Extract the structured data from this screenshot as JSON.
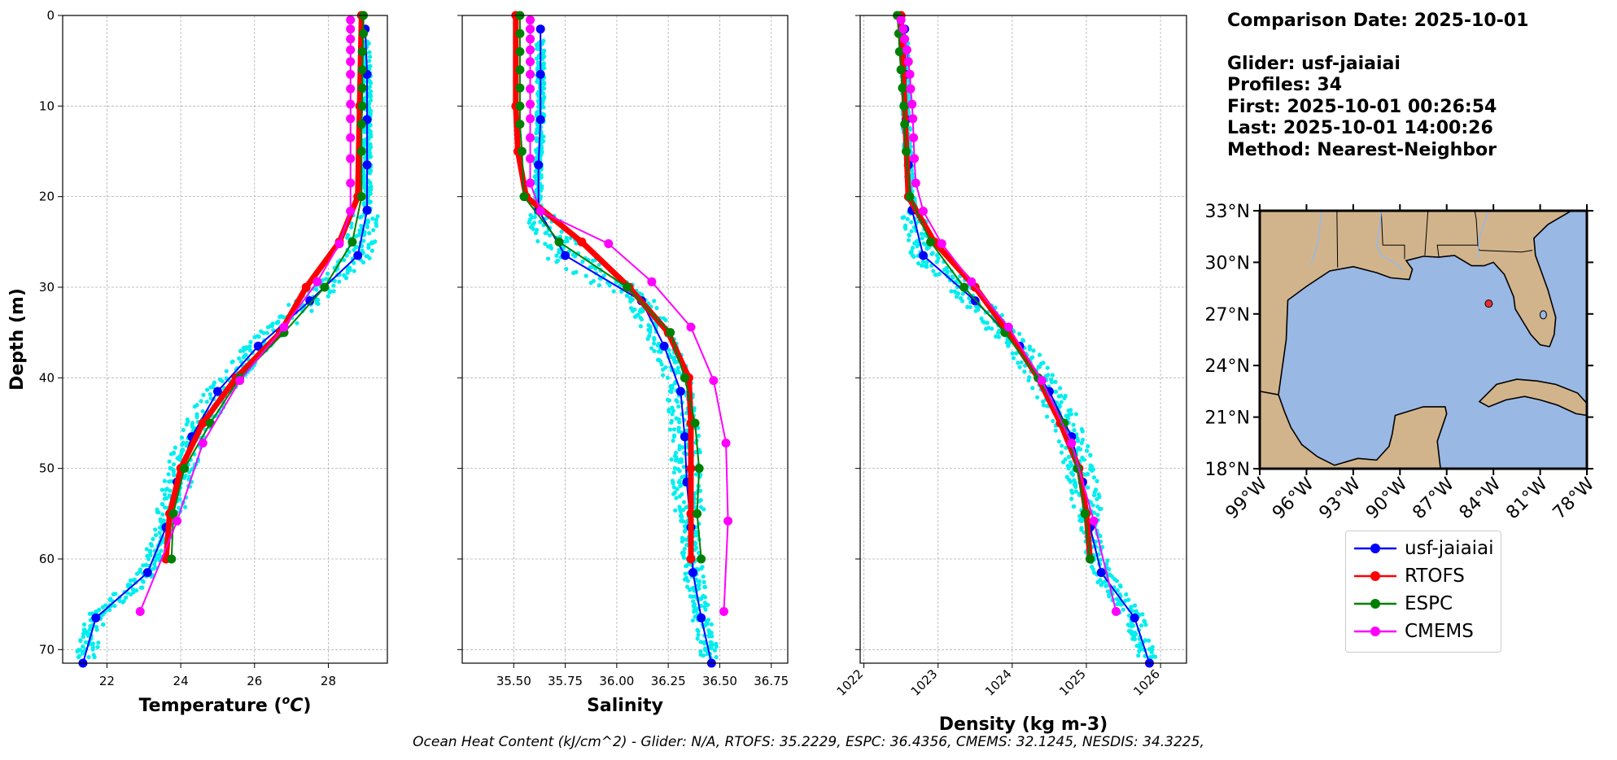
{
  "chart_data": [
    {
      "type": "line",
      "xlabel": "Temperature (°C)",
      "xlabel_parts": {
        "pre": "Temperature (",
        "sup": "o",
        "unit": "C",
        "post": ")"
      },
      "ylabel": "Depth (m)",
      "xlim": [
        20.8,
        29.6
      ],
      "ylim": [
        71.5,
        0
      ],
      "xticks": [
        22,
        24,
        26,
        28
      ],
      "yticks": [
        0,
        10,
        20,
        30,
        40,
        50,
        60,
        70
      ],
      "show_yticklabels": true,
      "grid": true,
      "series": [
        {
          "name": "usf-jaiaiai",
          "color": "#0000ff",
          "width": 2,
          "marker": 5.5,
          "points": [
            [
              29.0,
              1.5
            ],
            [
              29.05,
              6.5
            ],
            [
              29.05,
              11.5
            ],
            [
              29.05,
              16.5
            ],
            [
              29.05,
              21.5
            ],
            [
              28.8,
              26.5
            ],
            [
              27.5,
              31.5
            ],
            [
              26.1,
              36.5
            ],
            [
              25.0,
              41.5
            ],
            [
              24.3,
              46.5
            ],
            [
              23.9,
              51.5
            ],
            [
              23.6,
              56.5
            ],
            [
              23.1,
              61.5
            ],
            [
              21.7,
              66.5
            ],
            [
              21.35,
              71.5
            ]
          ]
        },
        {
          "name": "RTOFS",
          "color": "#ff0000",
          "width": 7,
          "marker": 5.5,
          "points": [
            [
              28.9,
              0
            ],
            [
              28.85,
              10
            ],
            [
              28.8,
              20
            ],
            [
              28.3,
              25
            ],
            [
              27.4,
              30
            ],
            [
              26.7,
              35
            ],
            [
              25.5,
              40
            ],
            [
              24.6,
              45
            ],
            [
              24.0,
              50
            ],
            [
              23.7,
              55
            ],
            [
              23.6,
              60
            ]
          ]
        },
        {
          "name": "ESPC",
          "color": "#008000",
          "width": 2,
          "marker": 5.5,
          "points": [
            [
              28.95,
              0
            ],
            [
              28.95,
              2
            ],
            [
              28.92,
              4
            ],
            [
              28.92,
              6
            ],
            [
              28.92,
              8
            ],
            [
              28.92,
              10
            ],
            [
              28.9,
              12
            ],
            [
              28.9,
              15
            ],
            [
              28.9,
              20
            ],
            [
              28.65,
              25
            ],
            [
              27.9,
              30
            ],
            [
              26.8,
              35
            ],
            [
              25.6,
              40
            ],
            [
              24.8,
              45
            ],
            [
              24.1,
              50
            ],
            [
              23.8,
              55
            ],
            [
              23.75,
              60
            ]
          ]
        },
        {
          "name": "CMEMS",
          "color": "#ff00ff",
          "width": 2,
          "marker": 5.5,
          "points": [
            [
              28.6,
              0.5
            ],
            [
              28.6,
              1.5
            ],
            [
              28.6,
              2.6
            ],
            [
              28.6,
              3.8
            ],
            [
              28.6,
              5.1
            ],
            [
              28.6,
              6.5
            ],
            [
              28.6,
              8.1
            ],
            [
              28.6,
              9.8
            ],
            [
              28.6,
              11.4
            ],
            [
              28.6,
              13.5
            ],
            [
              28.6,
              15.8
            ],
            [
              28.6,
              18.5
            ],
            [
              28.6,
              21.6
            ],
            [
              28.3,
              25.2
            ],
            [
              27.7,
              29.4
            ],
            [
              26.8,
              34.4
            ],
            [
              25.6,
              40.3
            ],
            [
              24.6,
              47.2
            ],
            [
              23.9,
              55.8
            ],
            [
              22.9,
              65.8
            ]
          ]
        }
      ]
    },
    {
      "type": "line",
      "xlabel": "Salinity",
      "ylabel": "",
      "xlim": [
        35.25,
        36.83
      ],
      "ylim": [
        71.5,
        0
      ],
      "xticks": [
        35.5,
        35.75,
        36.0,
        36.25,
        36.5,
        36.75
      ],
      "xtick_labels": [
        "35.50",
        "35.75",
        "36.00",
        "36.25",
        "36.50",
        "36.75"
      ],
      "yticks": [
        0,
        10,
        20,
        30,
        40,
        50,
        60,
        70
      ],
      "show_yticklabels": false,
      "grid": true,
      "series": [
        {
          "name": "usf-jaiaiai",
          "color": "#0000ff",
          "width": 2,
          "marker": 5.5,
          "points": [
            [
              35.63,
              1.5
            ],
            [
              35.63,
              6.5
            ],
            [
              35.63,
              11.5
            ],
            [
              35.62,
              16.5
            ],
            [
              35.62,
              21.5
            ],
            [
              35.75,
              26.5
            ],
            [
              36.12,
              31.5
            ],
            [
              36.23,
              36.5
            ],
            [
              36.31,
              41.5
            ],
            [
              36.33,
              46.5
            ],
            [
              36.34,
              51.5
            ],
            [
              36.36,
              56.5
            ],
            [
              36.37,
              61.5
            ],
            [
              36.41,
              66.5
            ],
            [
              36.46,
              71.5
            ]
          ]
        },
        {
          "name": "RTOFS",
          "color": "#ff0000",
          "width": 7,
          "marker": 5.5,
          "points": [
            [
              35.51,
              0
            ],
            [
              35.51,
              10
            ],
            [
              35.52,
              15
            ],
            [
              35.56,
              20
            ],
            [
              35.83,
              25
            ],
            [
              36.06,
              30
            ],
            [
              36.25,
              35
            ],
            [
              36.35,
              40
            ],
            [
              36.36,
              45
            ],
            [
              36.36,
              50
            ],
            [
              36.36,
              55
            ],
            [
              36.36,
              60
            ]
          ]
        },
        {
          "name": "ESPC",
          "color": "#008000",
          "width": 2,
          "marker": 5.5,
          "points": [
            [
              35.53,
              0
            ],
            [
              35.53,
              2
            ],
            [
              35.53,
              4
            ],
            [
              35.53,
              6
            ],
            [
              35.53,
              8
            ],
            [
              35.53,
              10
            ],
            [
              35.53,
              12
            ],
            [
              35.54,
              15
            ],
            [
              35.55,
              20
            ],
            [
              35.72,
              25
            ],
            [
              36.05,
              30
            ],
            [
              36.26,
              35
            ],
            [
              36.33,
              40
            ],
            [
              36.38,
              45
            ],
            [
              36.4,
              50
            ],
            [
              36.39,
              55
            ],
            [
              36.41,
              60
            ]
          ]
        },
        {
          "name": "CMEMS",
          "color": "#ff00ff",
          "width": 2,
          "marker": 5.5,
          "points": [
            [
              35.58,
              0.5
            ],
            [
              35.58,
              1.5
            ],
            [
              35.58,
              2.6
            ],
            [
              35.58,
              3.8
            ],
            [
              35.58,
              5.1
            ],
            [
              35.58,
              6.5
            ],
            [
              35.58,
              8.1
            ],
            [
              35.58,
              9.8
            ],
            [
              35.58,
              11.4
            ],
            [
              35.58,
              13.5
            ],
            [
              35.58,
              15.8
            ],
            [
              35.58,
              18.5
            ],
            [
              35.63,
              21.6
            ],
            [
              35.96,
              25.2
            ],
            [
              36.17,
              29.4
            ],
            [
              36.36,
              34.4
            ],
            [
              36.47,
              40.3
            ],
            [
              36.53,
              47.2
            ],
            [
              36.54,
              55.8
            ],
            [
              36.52,
              65.8
            ]
          ]
        }
      ]
    },
    {
      "type": "line",
      "xlabel": "Density (kg m-3)",
      "ylabel": "",
      "xlim": [
        1021.95,
        1026.35
      ],
      "ylim": [
        71.5,
        0
      ],
      "xticks": [
        1022,
        1023,
        1024,
        1025,
        1026
      ],
      "yticks": [
        0,
        10,
        20,
        30,
        40,
        50,
        60,
        70
      ],
      "show_yticklabels": false,
      "rotate_xticks": true,
      "grid": true,
      "series": [
        {
          "name": "usf-jaiaiai",
          "color": "#0000ff",
          "width": 2,
          "marker": 5.5,
          "points": [
            [
              1022.55,
              1.5
            ],
            [
              1022.56,
              6.5
            ],
            [
              1022.57,
              11.5
            ],
            [
              1022.6,
              16.5
            ],
            [
              1022.65,
              21.5
            ],
            [
              1022.8,
              26.5
            ],
            [
              1023.5,
              31.5
            ],
            [
              1024.1,
              36.5
            ],
            [
              1024.5,
              41.5
            ],
            [
              1024.8,
              46.5
            ],
            [
              1024.95,
              51.5
            ],
            [
              1025.05,
              56.5
            ],
            [
              1025.2,
              61.5
            ],
            [
              1025.65,
              66.5
            ],
            [
              1025.85,
              71.5
            ]
          ]
        },
        {
          "name": "RTOFS",
          "color": "#ff0000",
          "width": 7,
          "marker": 5.5,
          "points": [
            [
              1022.5,
              0
            ],
            [
              1022.55,
              10
            ],
            [
              1022.6,
              20
            ],
            [
              1022.95,
              25
            ],
            [
              1023.5,
              30
            ],
            [
              1023.95,
              35
            ],
            [
              1024.35,
              40
            ],
            [
              1024.65,
              45
            ],
            [
              1024.9,
              50
            ],
            [
              1025.0,
              55
            ],
            [
              1025.05,
              60
            ]
          ]
        },
        {
          "name": "ESPC",
          "color": "#008000",
          "width": 2,
          "marker": 5.5,
          "points": [
            [
              1022.45,
              0
            ],
            [
              1022.47,
              2
            ],
            [
              1022.48,
              4
            ],
            [
              1022.5,
              6
            ],
            [
              1022.52,
              8
            ],
            [
              1022.54,
              10
            ],
            [
              1022.55,
              12
            ],
            [
              1022.57,
              15
            ],
            [
              1022.62,
              20
            ],
            [
              1022.9,
              25
            ],
            [
              1023.35,
              30
            ],
            [
              1023.9,
              35
            ],
            [
              1024.35,
              40
            ],
            [
              1024.7,
              45
            ],
            [
              1024.88,
              50
            ],
            [
              1024.98,
              55
            ],
            [
              1025.05,
              60
            ]
          ]
        },
        {
          "name": "CMEMS",
          "color": "#ff00ff",
          "width": 2,
          "marker": 5.5,
          "points": [
            [
              1022.5,
              0.5
            ],
            [
              1022.53,
              1.5
            ],
            [
              1022.55,
              2.6
            ],
            [
              1022.58,
              3.8
            ],
            [
              1022.6,
              5.1
            ],
            [
              1022.62,
              6.5
            ],
            [
              1022.63,
              8.1
            ],
            [
              1022.65,
              9.8
            ],
            [
              1022.66,
              11.4
            ],
            [
              1022.67,
              13.5
            ],
            [
              1022.68,
              15.8
            ],
            [
              1022.7,
              18.5
            ],
            [
              1022.8,
              21.6
            ],
            [
              1023.05,
              25.2
            ],
            [
              1023.45,
              29.4
            ],
            [
              1023.95,
              34.4
            ],
            [
              1024.4,
              40.3
            ],
            [
              1024.8,
              47.2
            ],
            [
              1025.1,
              55.8
            ],
            [
              1025.4,
              65.8
            ]
          ]
        }
      ]
    }
  ],
  "glider_color": "#00eeee",
  "info": {
    "date": "Comparison Date: 2025-10-01",
    "glider": "Glider: usf-jaiaiai",
    "profiles": "Profiles: 34",
    "first": "First: 2025-10-01 00:26:54",
    "last": "Last: 2025-10-01 14:00:26",
    "method": "Method: Nearest-Neighbor"
  },
  "map": {
    "lat_ticks": [
      "33°N",
      "30°N",
      "27°N",
      "24°N",
      "21°N",
      "18°N"
    ],
    "lon_ticks": [
      "99°W",
      "96°W",
      "93°W",
      "90°W",
      "87°W",
      "84°W",
      "81°W",
      "78°W"
    ],
    "glider_position": {
      "lat": 27.6,
      "lon": -84.3
    },
    "land_color": "#d2b48c",
    "ocean_color": "#9ab8e4",
    "marker_color": "#e83030"
  },
  "legend": {
    "items": [
      {
        "label": "usf-jaiaiai",
        "color": "#0000ff"
      },
      {
        "label": "RTOFS",
        "color": "#ff0000"
      },
      {
        "label": "ESPC",
        "color": "#008000"
      },
      {
        "label": "CMEMS",
        "color": "#ff00ff"
      }
    ]
  },
  "footer": "Ocean Heat Content (kJ/cm^2) - Glider: N/A,  RTOFS: 35.2229,  ESPC: 36.4356,  CMEMS: 32.1245,  NESDIS: 34.3225,"
}
